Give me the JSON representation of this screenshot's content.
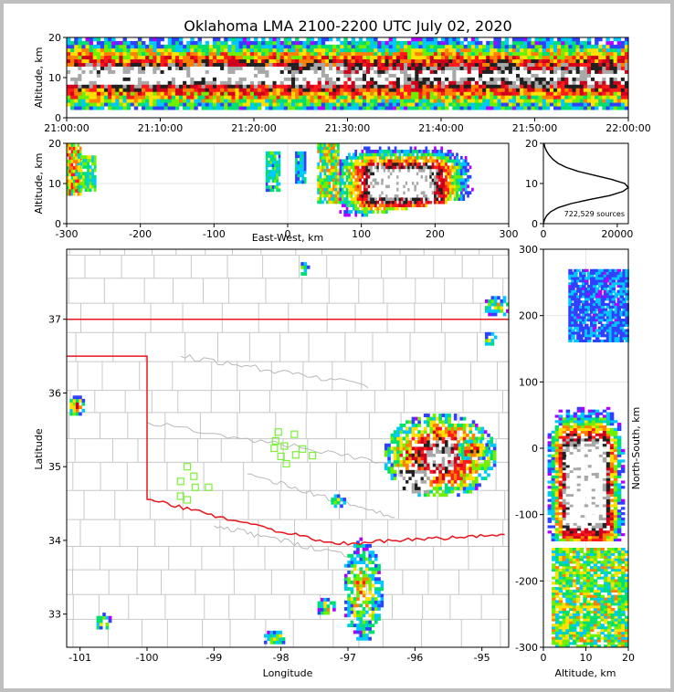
{
  "title": "Oklahoma LMA 2100-2200 UTC July 02, 2020",
  "colors": {
    "state_border": "#e8161c",
    "county_lines": "#c8c8c8",
    "stations": "#7cf03a",
    "density_scale": [
      "#b000ff",
      "#3040ff",
      "#00c8ff",
      "#00e070",
      "#70f000",
      "#ffe000",
      "#ff8000",
      "#ff1a1a",
      "#d0001a",
      "#202020",
      "#a8a8a8",
      "#ffffff"
    ]
  },
  "chart_data": [
    {
      "id": "time_height",
      "type": "heatmap",
      "xlabel": "",
      "ylabel": "Altitude, km",
      "xticks": [
        "21:00:00",
        "21:10:00",
        "21:20:00",
        "21:30:00",
        "21:40:00",
        "21:50:00",
        "22:00:00"
      ],
      "xlim_minutes": [
        0,
        60
      ],
      "ylim": [
        0,
        20
      ],
      "yticks": [
        0,
        10,
        20
      ],
      "source_band_km": [
        2,
        20
      ],
      "peak_altitude_km": 10
    },
    {
      "id": "east_west_height",
      "type": "heatmap",
      "xlabel": "East-West, km",
      "ylabel": "Altitude, km",
      "xlim": [
        -300,
        300
      ],
      "xticks": [
        -300,
        -200,
        -100,
        0,
        100,
        200,
        300
      ],
      "ylim": [
        0,
        20
      ],
      "yticks": [
        0,
        10,
        20
      ],
      "clusters": [
        {
          "x": [
            -300,
            -280
          ],
          "z": [
            7,
            20
          ],
          "intensity": 0.7
        },
        {
          "x": [
            -285,
            -260
          ],
          "z": [
            8,
            17
          ],
          "intensity": 0.5
        },
        {
          "x": [
            -30,
            -10
          ],
          "z": [
            8,
            18
          ],
          "intensity": 0.4
        },
        {
          "x": [
            10,
            25
          ],
          "z": [
            10,
            18
          ],
          "intensity": 0.3
        },
        {
          "x": [
            40,
            70
          ],
          "z": [
            5,
            20
          ],
          "intensity": 0.6
        },
        {
          "x": [
            70,
            300
          ],
          "z": [
            1,
            20
          ],
          "intensity": 1.0,
          "core_x": [
            120,
            190
          ],
          "core_z": [
            7,
            13
          ]
        }
      ]
    },
    {
      "id": "altitude_histogram",
      "type": "line",
      "xlabel": "",
      "ylabel": "",
      "annotation": "722,529 sources",
      "xlim": [
        0,
        23000
      ],
      "xticks": [
        0,
        20000
      ],
      "ylim": [
        0,
        20
      ],
      "yticks": [
        0,
        10,
        20
      ],
      "x": [
        0,
        300,
        900,
        2000,
        4000,
        7500,
        12500,
        18000,
        21500,
        23000,
        22000,
        18500,
        14000,
        9500,
        6200,
        4000,
        2600,
        1600,
        900,
        400,
        150
      ],
      "y": [
        0,
        1,
        2,
        3,
        4,
        5,
        6,
        7,
        8,
        9,
        10,
        11,
        12,
        13,
        14,
        15,
        16,
        17,
        18,
        19,
        20
      ]
    },
    {
      "id": "plan_view",
      "type": "heatmap",
      "xlabel": "Longitude",
      "ylabel": "Latitude",
      "xlim": [
        -101.2,
        -94.6
      ],
      "ylim": [
        32.55,
        37.95
      ],
      "xticks": [
        -101,
        -100,
        -99,
        -98,
        -97,
        -96,
        -95
      ],
      "yticks": [
        33,
        34,
        35,
        36,
        37
      ],
      "stations": [
        [
          -98.04,
          35.47
        ],
        [
          -97.8,
          35.44
        ],
        [
          -98.08,
          35.35
        ],
        [
          -97.95,
          35.28
        ],
        [
          -98.1,
          35.25
        ],
        [
          -97.68,
          35.24
        ],
        [
          -98.0,
          35.14
        ],
        [
          -97.78,
          35.16
        ],
        [
          -97.53,
          35.15
        ],
        [
          -97.92,
          35.04
        ],
        [
          -99.4,
          35.0
        ],
        [
          -99.3,
          34.87
        ],
        [
          -99.5,
          34.8
        ],
        [
          -99.28,
          34.72
        ],
        [
          -99.08,
          34.72
        ],
        [
          -99.5,
          34.6
        ],
        [
          -99.4,
          34.55
        ]
      ],
      "clusters": [
        {
          "lon": [
            -96.5,
            -94.8
          ],
          "lat": [
            34.55,
            35.7
          ],
          "intensity": 1.0,
          "core_lon": [
            -96.3,
            -95.8
          ],
          "core_lat": [
            34.6,
            34.95
          ]
        },
        {
          "lon": [
            -95.4,
            -94.9
          ],
          "lat": [
            35.05,
            35.35
          ],
          "intensity": 0.9
        },
        {
          "lon": [
            -97.1,
            -96.5
          ],
          "lat": [
            32.6,
            34.0
          ],
          "intensity": 0.6
        },
        {
          "lon": [
            -101.2,
            -100.95
          ],
          "lat": [
            35.65,
            35.95
          ],
          "intensity": 0.7
        },
        {
          "lon": [
            -100.8,
            -100.55
          ],
          "lat": [
            32.75,
            33.0
          ],
          "intensity": 0.5
        },
        {
          "lon": [
            -97.75,
            -97.6
          ],
          "lat": [
            37.55,
            37.75
          ],
          "intensity": 0.4
        },
        {
          "lon": [
            -95.0,
            -94.6
          ],
          "lat": [
            37.0,
            37.3
          ],
          "intensity": 0.5
        },
        {
          "lon": [
            -95.0,
            -94.8
          ],
          "lat": [
            36.6,
            36.8
          ],
          "intensity": 0.4
        },
        {
          "lon": [
            -97.5,
            -97.2
          ],
          "lat": [
            32.95,
            33.2
          ],
          "intensity": 0.5
        },
        {
          "lon": [
            -98.3,
            -97.9
          ],
          "lat": [
            32.55,
            32.75
          ],
          "intensity": 0.5
        },
        {
          "lon": [
            -97.3,
            -97.05
          ],
          "lat": [
            34.4,
            34.6
          ],
          "intensity": 0.4
        }
      ]
    },
    {
      "id": "north_south_height",
      "type": "heatmap",
      "xlabel": "Altitude, km",
      "ylabel": "North-South, km",
      "xlim": [
        0,
        20
      ],
      "xticks": [
        0,
        10,
        20
      ],
      "ylim": [
        -300,
        300
      ],
      "yticks": [
        -300,
        -200,
        -100,
        0,
        100,
        200,
        300
      ],
      "clusters": [
        {
          "y": [
            -140,
            90
          ],
          "z": [
            1,
            20
          ],
          "intensity": 1.0,
          "core_y": [
            -110,
            0
          ],
          "core_z": [
            6,
            14
          ]
        },
        {
          "y": [
            -300,
            -150
          ],
          "z": [
            2,
            20
          ],
          "intensity": 0.6
        },
        {
          "y": [
            160,
            270
          ],
          "z": [
            6,
            20
          ],
          "intensity": 0.25
        }
      ]
    }
  ]
}
